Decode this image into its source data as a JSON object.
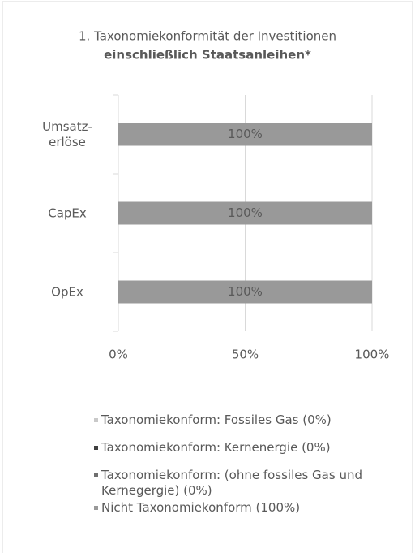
{
  "chart_data": {
    "type": "stacked_barh",
    "title": "1. Taxonomiekonformität der Investitionen",
    "subtitle": "einschließlich Staatsanleihen*",
    "categories": [
      "Umsatz-\nerlöse",
      "CapEx",
      "OpEx"
    ],
    "series": [
      {
        "name": "Taxonomiekonform: Fossiles Gas (0%)",
        "color": "#c9c9c9",
        "values": [
          0,
          0,
          0
        ]
      },
      {
        "name": "Taxonomiekonform: Kernenergie (0%)",
        "color": "#3f3f3f",
        "values": [
          0,
          0,
          0
        ]
      },
      {
        "name": "Taxonomiekonform: (ohne fossiles Gas und Kernegergie) (0%)",
        "color": "#6f6f6f",
        "values": [
          0,
          0,
          0
        ]
      },
      {
        "name": "Nicht Taxonomiekonform (100%)",
        "color": "#999999",
        "values": [
          100,
          100,
          100
        ],
        "value_labels": [
          "100%",
          "100%",
          "100%"
        ]
      }
    ],
    "xlim": [
      0,
      100
    ],
    "xticks": [
      {
        "value": 0,
        "label": "0%"
      },
      {
        "value": 50,
        "label": "50%"
      },
      {
        "value": 100,
        "label": "100%"
      }
    ],
    "grid": true
  }
}
